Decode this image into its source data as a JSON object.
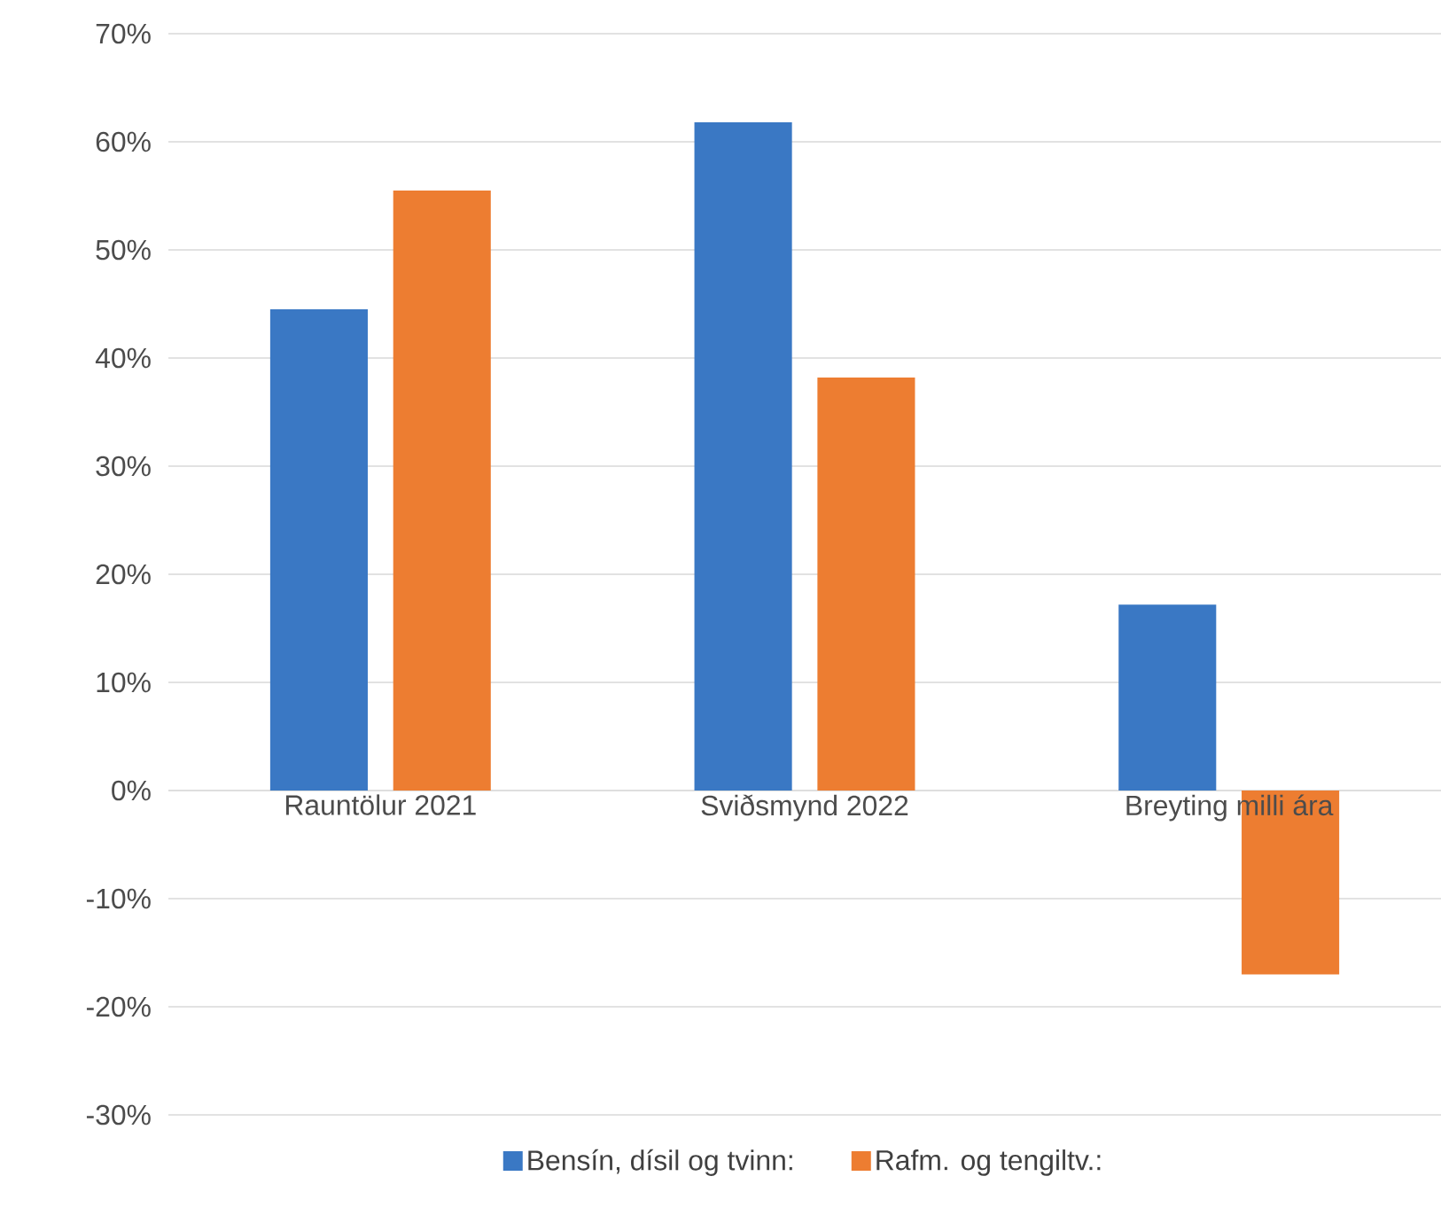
{
  "chart_data": {
    "type": "bar",
    "categories": [
      "Rauntölur 2021",
      "Sviðsmynd 2022",
      "Breyting milli ára"
    ],
    "series": [
      {
        "name": "Bensín, dísil og tvinn:",
        "color": "#3a78c4",
        "values": [
          44.5,
          61.8,
          17.2
        ]
      },
      {
        "name": "Rafm. og tengiltv.:",
        "color": "#ed7d31",
        "values": [
          55.5,
          38.2,
          -17.0
        ]
      }
    ],
    "ylim": [
      -30,
      70
    ],
    "yticks": [
      {
        "value": -30,
        "label": "-30%"
      },
      {
        "value": -20,
        "label": "-20%"
      },
      {
        "value": -10,
        "label": "-10%"
      },
      {
        "value": 0,
        "label": "0%"
      },
      {
        "value": 10,
        "label": "10%"
      },
      {
        "value": 20,
        "label": "20%"
      },
      {
        "value": 30,
        "label": "30%"
      },
      {
        "value": 40,
        "label": "40%"
      },
      {
        "value": 50,
        "label": "50%"
      },
      {
        "value": 60,
        "label": "60%"
      },
      {
        "value": 70,
        "label": "70%"
      }
    ],
    "grid": "y",
    "legend": "bottom"
  }
}
